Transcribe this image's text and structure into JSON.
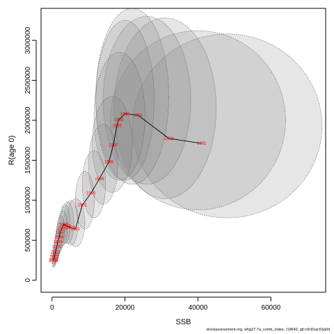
{
  "chart_data": {
    "type": "scatter",
    "xlabel": "SSB",
    "ylabel": "R(age 0)",
    "xlim": [
      -3000,
      75000
    ],
    "ylim": [
      -150000,
      3400000
    ],
    "x_ticks": [
      0,
      20000,
      40000,
      60000
    ],
    "x_tick_labels": [
      "0",
      "20000",
      "40000",
      "60000"
    ],
    "y_ticks": [
      0,
      500000,
      1000000,
      1500000,
      2000000,
      2500000,
      3000000
    ],
    "y_tick_labels": [
      "0",
      "500000",
      "1000000",
      "1500000",
      "2000000",
      "2500000",
      "3000000"
    ],
    "grid": false,
    "legend": "none",
    "colors": {
      "year_label": "#ff0000",
      "ellipse_fill": "#808080",
      "line": "#000000"
    },
    "points": [
      {
        "label": "1981",
        "x": 41000,
        "y": 1710000
      },
      {
        "label": "1982",
        "x": 32000,
        "y": 1775000
      },
      {
        "label": "1983",
        "x": 23500,
        "y": 2065000
      },
      {
        "label": "1984",
        "x": 20000,
        "y": 2080000
      },
      {
        "label": "1985",
        "x": 18300,
        "y": 2010000
      },
      {
        "label": "1986",
        "x": 17800,
        "y": 1935000
      },
      {
        "label": "1987",
        "x": 16800,
        "y": 1690000
      },
      {
        "label": "1988",
        "x": 15600,
        "y": 1480000
      },
      {
        "label": "1989",
        "x": 13000,
        "y": 1270000
      },
      {
        "label": "1990",
        "x": 10700,
        "y": 1090000
      },
      {
        "label": "1991",
        "x": 8300,
        "y": 940000
      },
      {
        "label": "1992",
        "x": 6400,
        "y": 640000
      },
      {
        "label": "1993",
        "x": 5000,
        "y": 660000
      },
      {
        "label": "1994",
        "x": 3900,
        "y": 680000
      },
      {
        "label": "1995",
        "x": 3300,
        "y": 700000
      },
      {
        "label": "1996",
        "x": 2700,
        "y": 650000
      },
      {
        "label": "1997",
        "x": 2200,
        "y": 600000
      },
      {
        "label": "1998",
        "x": 2000,
        "y": 540000
      },
      {
        "label": "1999",
        "x": 1600,
        "y": 480000
      },
      {
        "label": "2000",
        "x": 1300,
        "y": 420000
      },
      {
        "label": "2001",
        "x": 1000,
        "y": 360000
      },
      {
        "label": "2002",
        "x": 800,
        "y": 320000
      },
      {
        "label": "2003",
        "x": 600,
        "y": 290000
      },
      {
        "label": "2004",
        "x": 500,
        "y": 260000
      },
      {
        "label": "2005",
        "x": 400,
        "y": 240000
      }
    ],
    "ellipses": [
      {
        "label": "1981",
        "cx": 48000,
        "cy": 1930000,
        "rx": 26000,
        "ry": 1150000,
        "angle": 0
      },
      {
        "label": "1982",
        "cx": 40000,
        "cy": 2000000,
        "rx": 24000,
        "ry": 1120000,
        "angle": 0
      },
      {
        "label": "1983",
        "cx": 31000,
        "cy": 2150000,
        "rx": 14000,
        "ry": 1130000,
        "angle": 0
      },
      {
        "label": "1984",
        "cx": 26000,
        "cy": 2250000,
        "rx": 12000,
        "ry": 1050000,
        "angle": 0
      },
      {
        "label": "1985",
        "cx": 22000,
        "cy": 2300000,
        "rx": 10000,
        "ry": 1100000,
        "angle": 0
      },
      {
        "label": "1986",
        "cx": 20000,
        "cy": 2250000,
        "rx": 8000,
        "ry": 1000000,
        "angle": 0
      },
      {
        "label": "1987",
        "cx": 18500,
        "cy": 2050000,
        "rx": 7000,
        "ry": 800000,
        "angle": 0
      },
      {
        "label": "1988",
        "cx": 16500,
        "cy": 1700000,
        "rx": 5500,
        "ry": 600000,
        "angle": 0
      },
      {
        "label": "1989",
        "cx": 14000,
        "cy": 1450000,
        "rx": 4000,
        "ry": 500000,
        "angle": 0
      },
      {
        "label": "1990",
        "cx": 11500,
        "cy": 1200000,
        "rx": 3200,
        "ry": 420000,
        "angle": 0
      },
      {
        "label": "1991",
        "cx": 9000,
        "cy": 1000000,
        "rx": 2600,
        "ry": 360000,
        "angle": 0
      },
      {
        "label": "1992",
        "cx": 6500,
        "cy": 720000,
        "rx": 2500,
        "ry": 300000,
        "angle": 0
      },
      {
        "label": "1993",
        "cx": 5200,
        "cy": 720000,
        "rx": 2000,
        "ry": 280000,
        "angle": 0
      },
      {
        "label": "1994",
        "cx": 4200,
        "cy": 720000,
        "rx": 1800,
        "ry": 260000,
        "angle": 0
      },
      {
        "label": "1995",
        "cx": 3500,
        "cy": 700000,
        "rx": 1500,
        "ry": 240000,
        "angle": 0
      },
      {
        "label": "1996",
        "cx": 2900,
        "cy": 650000,
        "rx": 1300,
        "ry": 220000,
        "angle": 0
      },
      {
        "label": "1997",
        "cx": 2400,
        "cy": 600000,
        "rx": 1100,
        "ry": 200000,
        "angle": 0
      },
      {
        "label": "1998",
        "cx": 2100,
        "cy": 540000,
        "rx": 1000,
        "ry": 180000,
        "angle": 0
      },
      {
        "label": "1999",
        "cx": 1700,
        "cy": 480000,
        "rx": 900,
        "ry": 160000,
        "angle": 0
      },
      {
        "label": "2000",
        "cx": 1400,
        "cy": 420000,
        "rx": 800,
        "ry": 140000,
        "angle": 0
      },
      {
        "label": "2001",
        "cx": 1100,
        "cy": 360000,
        "rx": 700,
        "ry": 120000,
        "angle": 0
      },
      {
        "label": "2002",
        "cx": 900,
        "cy": 320000,
        "rx": 600,
        "ry": 110000,
        "angle": 0
      },
      {
        "label": "2003",
        "cx": 700,
        "cy": 290000,
        "rx": 500,
        "ry": 100000,
        "angle": 0
      },
      {
        "label": "2004",
        "cx": 550,
        "cy": 260000,
        "rx": 450,
        "ry": 90000,
        "angle": 0
      },
      {
        "label": "2005",
        "cx": 450,
        "cy": 240000,
        "rx": 400,
        "ry": 80000,
        "angle": 0
      }
    ]
  },
  "footer": "stockassessment.org, whg27.7a_comb_index, r18642, git:c9c81ac53a0d"
}
